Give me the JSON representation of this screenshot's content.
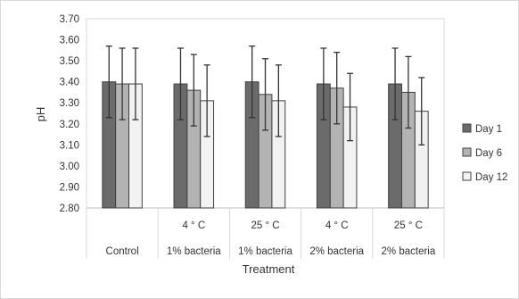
{
  "chart_data": {
    "type": "bar",
    "title": "",
    "xlabel": "Treatment",
    "ylabel": "pH",
    "ylim": [
      2.8,
      3.7
    ],
    "ytick_step": 0.1,
    "yticks": [
      "2.80",
      "2.90",
      "3.00",
      "3.10",
      "3.20",
      "3.30",
      "3.40",
      "3.50",
      "3.60",
      "3.70"
    ],
    "grid": false,
    "legend_position": "right",
    "categories_top": [
      "",
      "4 ° C",
      "25 ° C",
      "4 ° C",
      "25 ° C"
    ],
    "categories_bottom": [
      "Control",
      "1% bacteria",
      "1% bacteria",
      "2% bacteria",
      "2% bacteria"
    ],
    "series": [
      {
        "name": "Day 1",
        "color": "#6b6b6b",
        "values": [
          3.4,
          3.39,
          3.4,
          3.39,
          3.39
        ],
        "errors": [
          0.17,
          0.17,
          0.17,
          0.17,
          0.17
        ]
      },
      {
        "name": "Day 6",
        "color": "#b3b3b3",
        "values": [
          3.39,
          3.36,
          3.34,
          3.37,
          3.35
        ],
        "errors": [
          0.17,
          0.17,
          0.17,
          0.17,
          0.17
        ]
      },
      {
        "name": "Day 12",
        "color": "#f2f2f2",
        "values": [
          3.39,
          3.31,
          3.31,
          3.28,
          3.26
        ],
        "errors": [
          0.17,
          0.17,
          0.17,
          0.16,
          0.16
        ]
      }
    ]
  }
}
